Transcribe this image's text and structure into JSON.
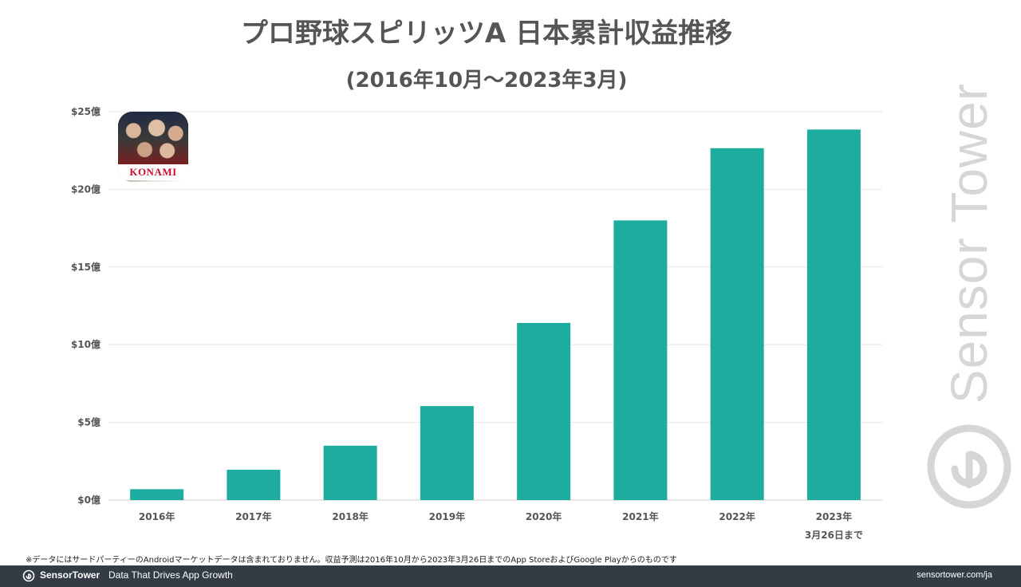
{
  "header": {
    "title": "プロ野球スピリッツA 日本累計収益推移",
    "subtitle": "(2016年10月〜2023年3月)"
  },
  "chart_data": {
    "type": "bar",
    "categories": [
      "2016年",
      "2017年",
      "2018年",
      "2019年",
      "2020年",
      "2021年",
      "2022年",
      "2023年"
    ],
    "category_sublabels": [
      "",
      "",
      "",
      "",
      "",
      "",
      "",
      "3月26日まで"
    ],
    "values": [
      0.7,
      1.95,
      3.5,
      6.05,
      11.4,
      18.0,
      22.65,
      23.85
    ],
    "ylim": [
      0,
      25
    ],
    "yticks": [
      0,
      5,
      10,
      15,
      20,
      25
    ],
    "ytick_labels": [
      "$0億",
      "$5億",
      "$10億",
      "$15億",
      "$20億",
      "$25億"
    ],
    "grid": true,
    "bar_color": "#1dac9d"
  },
  "app_icon": {
    "name": "app-icon",
    "brand_text": "KONAMI"
  },
  "watermark": {
    "text": "Sensor Tower",
    "color": "#d6d6d6"
  },
  "footnote": "※データにはサードパーティーのAndroidマーケットデータは含まれておりません。収益予測は2016年10月から2023年3月26日までのApp StoreおよびGoogle Playからのものです",
  "footer": {
    "brand": "SensorTower",
    "tagline": "Data That Drives App Growth",
    "url": "sensortower.com/ja",
    "background": "#333b45"
  }
}
